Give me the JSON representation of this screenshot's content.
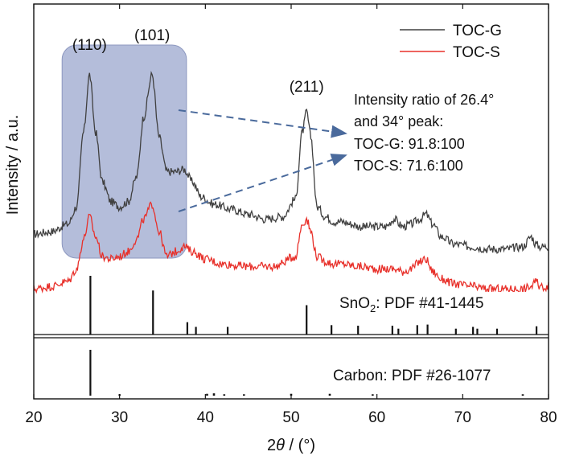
{
  "chart_data": {
    "type": "line",
    "xlabel": {
      "prefix": "2",
      "var": "θ",
      "suffix": " / (°)"
    },
    "ylabel": "Intensity / a.u.",
    "xlim": [
      20,
      80
    ],
    "xticks": [
      20,
      30,
      40,
      50,
      60,
      70,
      80
    ],
    "grid": false,
    "legend_position": "top-right",
    "series": [
      {
        "name": "TOC-G",
        "color": "#404040",
        "x": [
          20,
          22,
          24,
          25,
          25.8,
          26.5,
          27.2,
          28,
          29,
          30,
          31,
          32,
          32.8,
          33.8,
          34.6,
          35.5,
          36.5,
          37.5,
          38.5,
          39.5,
          41,
          43,
          45,
          47,
          49,
          50.5,
          51.3,
          51.8,
          52.3,
          53,
          54,
          55,
          56,
          57,
          58,
          59,
          60,
          61,
          62,
          63,
          64,
          65,
          65.7,
          66.5,
          67.5,
          69,
          71,
          73,
          75,
          77,
          78,
          78.5,
          79,
          80
        ],
        "y": [
          19,
          20,
          23,
          30,
          60,
          83,
          60,
          40,
          32,
          30,
          32,
          42,
          66,
          83,
          58,
          44,
          44,
          45,
          40,
          34,
          31,
          29,
          27,
          25,
          26,
          33,
          60,
          68,
          58,
          30,
          26,
          24,
          24,
          23,
          22,
          22,
          22,
          22,
          25,
          22,
          23,
          25,
          27,
          23,
          18,
          15,
          14,
          13,
          13,
          14,
          18,
          15,
          14,
          14
        ]
      },
      {
        "name": "TOC-S",
        "color": "#e8302a",
        "x": [
          20,
          22,
          24,
          25,
          25.8,
          26.5,
          27.2,
          28,
          29,
          30,
          31,
          32,
          32.8,
          33.8,
          34.6,
          35.5,
          36.5,
          37.5,
          38.5,
          40,
          42,
          45,
          48,
          50.5,
          51.3,
          51.8,
          52.3,
          53,
          54,
          55,
          56,
          58,
          60,
          62,
          63,
          64,
          65,
          65.7,
          66.5,
          67.5,
          69,
          71,
          73,
          75,
          77,
          78,
          78.5,
          79,
          80
        ],
        "y": [
          -3,
          -2,
          0,
          5,
          17,
          26,
          18,
          10,
          9,
          10,
          12,
          17,
          25,
          31,
          20,
          10,
          12,
          14,
          12,
          9,
          7,
          6,
          6,
          10,
          23,
          25,
          20,
          10,
          8,
          7,
          7,
          6,
          5,
          5,
          4,
          5,
          8,
          9,
          4,
          1,
          -1,
          -2,
          -3,
          -3,
          -3,
          -2,
          0,
          -2,
          -2
        ]
      }
    ],
    "peak_labels": [
      {
        "text": "(110)",
        "x": 26.5
      },
      {
        "text": "(101)",
        "x": 33.8
      },
      {
        "text": "(211)",
        "x": 51.8
      }
    ],
    "annotation": {
      "lines": [
        "Intensity ratio of 26.4°",
        "and 34° peak:",
        "TOC-G: 91.8:100",
        "TOC-S: 71.6:100"
      ]
    },
    "reference_patterns": [
      {
        "label_main": "SnO",
        "label_sub": "2",
        "label_rest": ": PDF #41-1445",
        "peaks": [
          [
            26.6,
            100
          ],
          [
            33.9,
            75
          ],
          [
            37.9,
            21
          ],
          [
            38.9,
            13
          ],
          [
            42.6,
            13
          ],
          [
            51.8,
            50
          ],
          [
            54.7,
            16
          ],
          [
            57.8,
            15
          ],
          [
            61.8,
            15
          ],
          [
            62.5,
            10
          ],
          [
            64.7,
            16
          ],
          [
            65.9,
            17
          ],
          [
            69.2,
            10
          ],
          [
            71.2,
            13
          ],
          [
            71.7,
            10
          ],
          [
            74.0,
            10
          ],
          [
            78.6,
            14
          ]
        ]
      },
      {
        "label_text": "Carbon: PDF #26-1077",
        "peaks": [
          [
            26.6,
            100
          ],
          [
            30.0,
            3
          ],
          [
            40.2,
            4
          ],
          [
            41.0,
            5
          ],
          [
            42.2,
            3
          ],
          [
            44.5,
            3
          ],
          [
            50.0,
            4
          ],
          [
            54.5,
            4
          ],
          [
            59.5,
            3
          ],
          [
            77.0,
            3
          ]
        ]
      }
    ],
    "highlight_range": [
      23.3,
      37.8
    ]
  }
}
